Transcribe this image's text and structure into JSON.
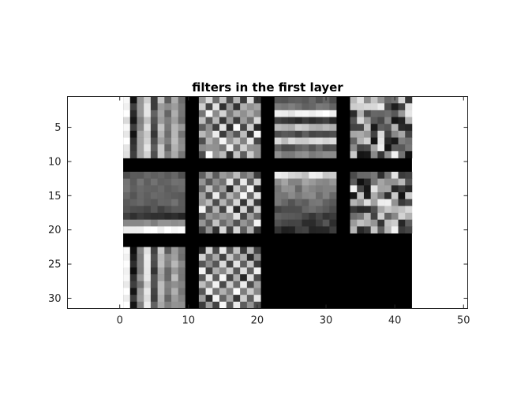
{
  "chart_data": {
    "type": "heatmap",
    "title": "filters in the first layer",
    "xlabel": "",
    "ylabel": "",
    "colormap": "gray",
    "y_direction": "reverse",
    "xlim": [
      -7.6,
      50.6
    ],
    "ylim": [
      0.5,
      31.5
    ],
    "image_x_extent": [
      0.5,
      42.5
    ],
    "image_y_extent": [
      0.5,
      31.5
    ],
    "xticks": [
      0,
      10,
      20,
      30,
      40,
      50
    ],
    "yticks": [
      5,
      10,
      15,
      20,
      25,
      30
    ],
    "grid": false,
    "layout": {
      "tile_rows": 3,
      "tile_cols": 4,
      "tile_size": 9,
      "separator": 2
    },
    "tiles": [
      {
        "filter": 1,
        "pattern": "vertical-stripes"
      },
      {
        "filter": 2,
        "pattern": "checkerboard"
      },
      {
        "filter": 3,
        "pattern": "horizontal-stripes"
      },
      {
        "filter": 4,
        "pattern": "mixed"
      },
      {
        "filter": 5,
        "pattern": "smooth-dark"
      },
      {
        "filter": 6,
        "pattern": "checkerboard"
      },
      {
        "filter": 7,
        "pattern": "horizontal-gradient"
      },
      {
        "filter": 8,
        "pattern": "mixed"
      },
      {
        "filter": 9,
        "pattern": "vertical-stripes"
      },
      {
        "filter": 10,
        "pattern": "checkerboard"
      },
      {
        "filter": 11,
        "pattern": "empty"
      },
      {
        "filter": 12,
        "pattern": "empty"
      }
    ]
  },
  "colors": {
    "axis": "#262626",
    "background": "#ffffff",
    "separator": "#000000"
  }
}
